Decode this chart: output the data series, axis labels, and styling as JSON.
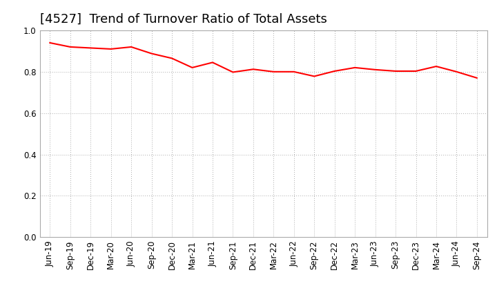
{
  "title": "[4527]  Trend of Turnover Ratio of Total Assets",
  "line_color": "#FF0000",
  "background_color": "#FFFFFF",
  "grid_color": "#aaaaaa",
  "ylim": [
    0.0,
    1.0
  ],
  "yticks": [
    0.0,
    0.2,
    0.4,
    0.6,
    0.8,
    1.0
  ],
  "labels": [
    "Jun-19",
    "Sep-19",
    "Dec-19",
    "Mar-20",
    "Jun-20",
    "Sep-20",
    "Dec-20",
    "Mar-21",
    "Jun-21",
    "Sep-21",
    "Dec-21",
    "Mar-22",
    "Jun-22",
    "Sep-22",
    "Dec-22",
    "Mar-23",
    "Jun-23",
    "Sep-23",
    "Dec-23",
    "Mar-24",
    "Jun-24",
    "Sep-24"
  ],
  "values": [
    0.94,
    0.92,
    0.915,
    0.91,
    0.92,
    0.888,
    0.865,
    0.82,
    0.845,
    0.798,
    0.812,
    0.8,
    0.8,
    0.778,
    0.803,
    0.82,
    0.81,
    0.803,
    0.803,
    0.826,
    0.8,
    0.77
  ],
  "title_fontsize": 13,
  "tick_fontsize": 8.5
}
